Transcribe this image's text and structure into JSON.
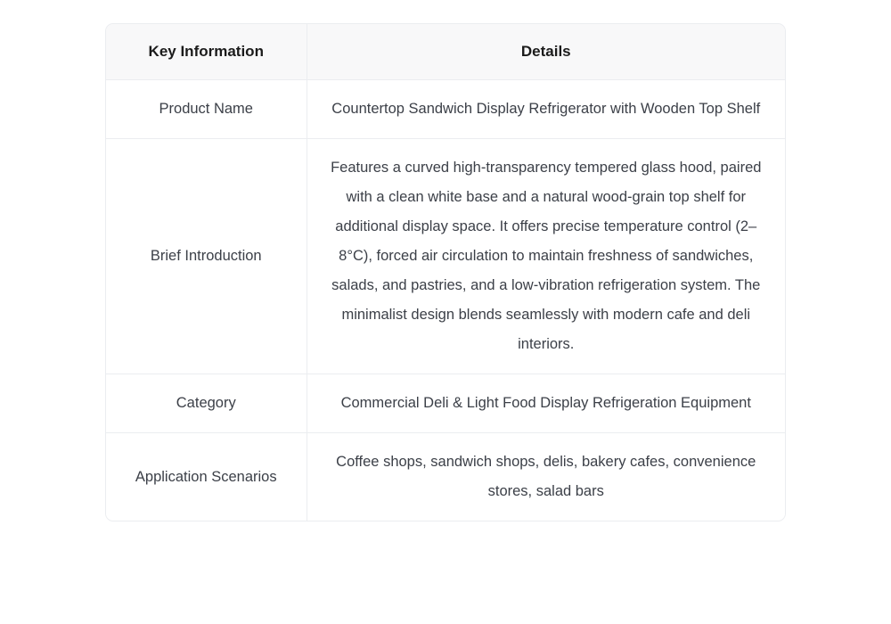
{
  "table": {
    "headers": {
      "key": "Key Information",
      "details": "Details"
    },
    "rows": [
      {
        "key": "Product Name",
        "details": "Countertop Sandwich Display Refrigerator with Wooden Top Shelf"
      },
      {
        "key": "Brief Introduction",
        "details": "Features a curved high-transparency tempered glass hood, paired with a clean white base and a natural wood-grain top shelf for additional display space. It offers precise temperature control (2–8°C), forced air circulation to maintain freshness of sandwiches, salads, and pastries, and a low-vibration refrigeration system. The minimalist design blends seamlessly with modern cafe and deli interiors."
      },
      {
        "key": "Category",
        "details": "Commercial Deli & Light Food Display Refrigeration Equipment"
      },
      {
        "key": "Application Scenarios",
        "details": "Coffee shops, sandwich shops, delis, bakery cafes, convenience stores, salad bars"
      }
    ],
    "colors": {
      "page_bg": "#ffffff",
      "header_bg": "#f8f8f9",
      "border": "#ebedf0",
      "header_text": "#1b1b1b",
      "body_text": "#3c4048"
    }
  }
}
